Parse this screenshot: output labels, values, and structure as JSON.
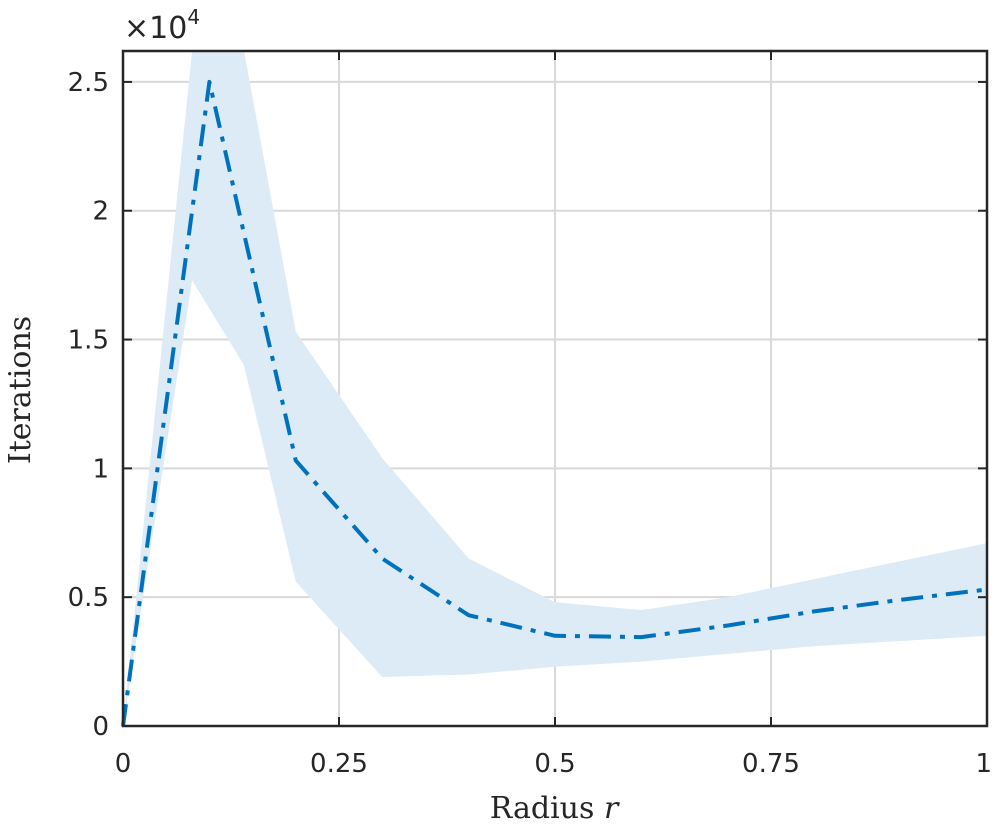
{
  "chart_data": {
    "type": "line",
    "title": "",
    "xlabel": "Radius",
    "xlabel_var": "r",
    "ylabel": "Iterations",
    "y_exponent_prefix": "×10",
    "y_exponent": "4",
    "xlim": [
      0,
      1
    ],
    "ylim": [
      0,
      26200
    ],
    "grid": true,
    "x_ticks": [
      0,
      0.25,
      0.5,
      0.75,
      1
    ],
    "x_tick_labels": [
      "0",
      "0.25",
      "0.5",
      "0.75",
      "1"
    ],
    "y_ticks": [
      0,
      5000,
      10000,
      15000,
      20000,
      25000
    ],
    "y_tick_labels": [
      "0",
      "0.5",
      "1",
      "1.5",
      "2",
      "2.5"
    ],
    "colors": {
      "line": "#0072BD",
      "band": "#DCEBF6",
      "grid": "#D9D9D9",
      "axis": "#262626"
    },
    "series": [
      {
        "line_style": "dash-dot",
        "x": [
          0,
          0.1,
          0.2,
          0.3,
          0.4,
          0.5,
          0.6,
          0.7,
          0.8,
          0.9,
          1.0
        ],
        "y": [
          0,
          25000,
          10300,
          6500,
          4300,
          3500,
          3450,
          3900,
          4450,
          4900,
          5300
        ],
        "band": {
          "x": [
            0,
            0.08,
            0.14,
            0.2,
            0.3,
            0.4,
            0.5,
            0.6,
            0.7,
            0.8,
            0.9,
            1.0
          ],
          "upper": [
            0,
            26200,
            26200,
            15300,
            10400,
            6500,
            4800,
            4500,
            5000,
            5700,
            6400,
            7100
          ],
          "lower": [
            0,
            17300,
            14000,
            5600,
            1900,
            2000,
            2300,
            2500,
            2800,
            3100,
            3300,
            3500
          ]
        }
      }
    ]
  }
}
